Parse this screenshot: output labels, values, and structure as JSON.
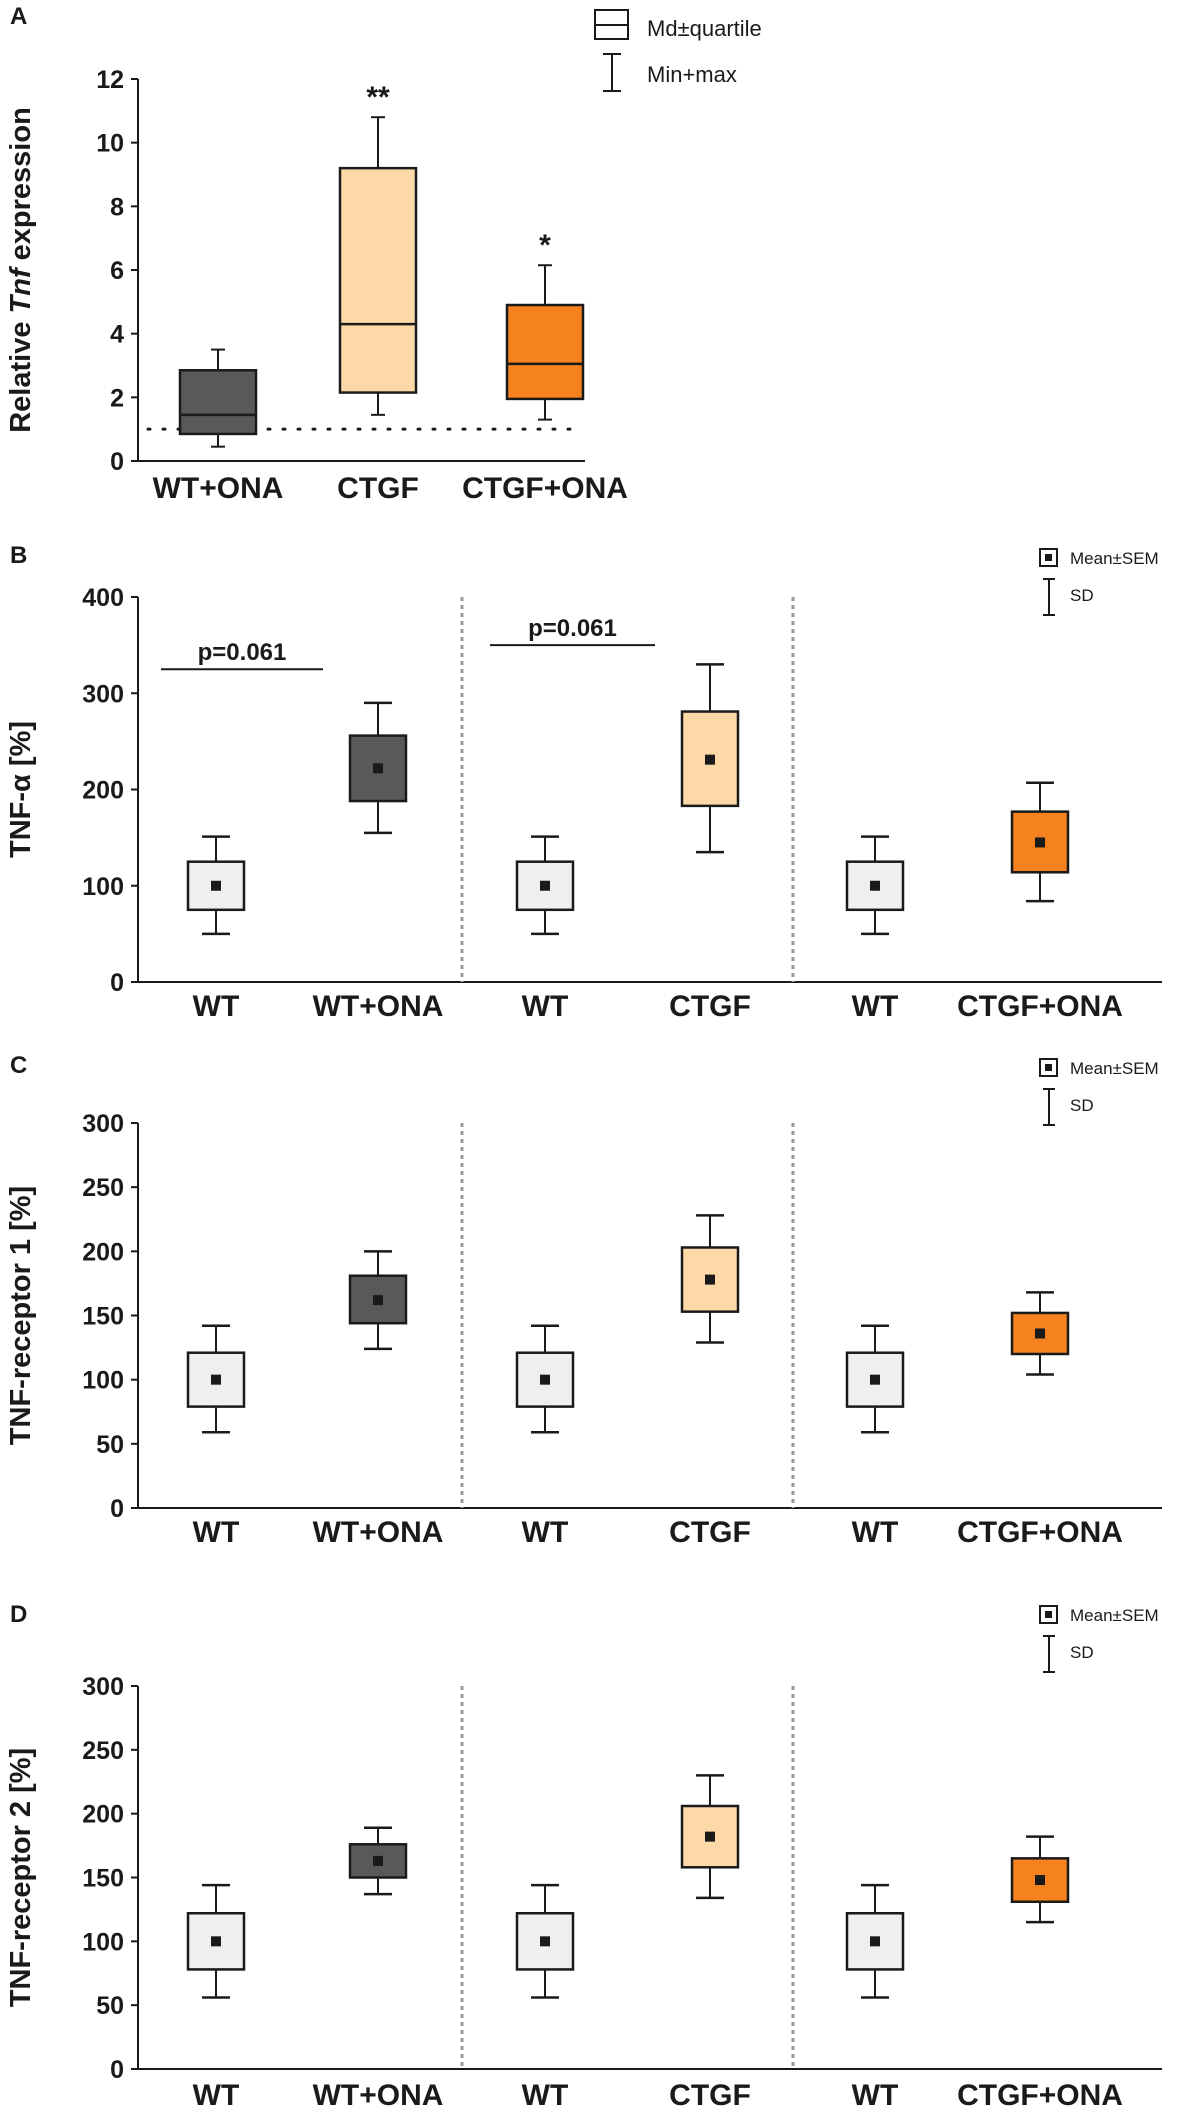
{
  "chart_data": [
    {
      "panel": "A",
      "type": "box",
      "ylabel_pre": "Relative ",
      "ylabel_em": "Tnf",
      "ylabel_post": " expression",
      "ylim": [
        0,
        12
      ],
      "yticks": [
        "0",
        "2",
        "4",
        "6",
        "8",
        "10",
        "12"
      ],
      "reference_line": 1,
      "legend": {
        "box": "Md±quartile",
        "whisker": "Min+max"
      },
      "boxes": [
        {
          "label": "WT+ONA",
          "min": 0.45,
          "q1": 0.85,
          "median": 1.45,
          "q3": 2.85,
          "max": 3.5,
          "color": "#595959",
          "sig": ""
        },
        {
          "label": "CTGF",
          "min": 1.45,
          "q1": 2.15,
          "median": 4.3,
          "q3": 9.2,
          "max": 10.8,
          "color": "#fdd9a8",
          "sig": "**"
        },
        {
          "label": "CTGF+ONA",
          "min": 1.3,
          "q1": 1.95,
          "median": 3.05,
          "q3": 4.9,
          "max": 6.15,
          "color": "#f5821f",
          "sig": "*"
        }
      ]
    },
    {
      "panel": "B",
      "type": "mean-sem-sd",
      "ylabel": "TNF-α [%]",
      "ylim": [
        0,
        400
      ],
      "yticks": [
        "0",
        "100",
        "200",
        "300",
        "400"
      ],
      "legend": {
        "mean": "Mean±SEM",
        "sd": "SD"
      },
      "groups": [
        {
          "label": "WT",
          "mean": 100,
          "sem_low": 75,
          "sem_high": 125,
          "sd_low": 50,
          "sd_high": 151,
          "color": "#efefef"
        },
        {
          "label": "WT+ONA",
          "mean": 222,
          "sem_low": 188,
          "sem_high": 256,
          "sd_low": 155,
          "sd_high": 290,
          "color": "#595959"
        },
        {
          "label": "WT",
          "mean": 100,
          "sem_low": 75,
          "sem_high": 125,
          "sd_low": 50,
          "sd_high": 151,
          "color": "#efefef"
        },
        {
          "label": "CTGF",
          "mean": 231,
          "sem_low": 183,
          "sem_high": 281,
          "sd_low": 135,
          "sd_high": 330,
          "color": "#fdd9a8"
        },
        {
          "label": "WT",
          "mean": 100,
          "sem_low": 75,
          "sem_high": 125,
          "sd_low": 50,
          "sd_high": 151,
          "color": "#efefef"
        },
        {
          "label": "CTGF+ONA",
          "mean": 145,
          "sem_low": 114,
          "sem_high": 177,
          "sd_low": 84,
          "sd_high": 207,
          "color": "#f5821f"
        }
      ],
      "brackets": [
        {
          "from": 0,
          "to": 1,
          "y": 325,
          "text": "p=0.061"
        },
        {
          "from": 2,
          "to": 3,
          "y": 350,
          "text": "p=0.061"
        }
      ]
    },
    {
      "panel": "C",
      "type": "mean-sem-sd",
      "ylabel": "TNF-receptor 1 [%]",
      "ylim": [
        0,
        300
      ],
      "yticks": [
        "0",
        "50",
        "100",
        "150",
        "200",
        "250",
        "300"
      ],
      "legend": {
        "mean": "Mean±SEM",
        "sd": "SD"
      },
      "groups": [
        {
          "label": "WT",
          "mean": 100,
          "sem_low": 79,
          "sem_high": 121,
          "sd_low": 59,
          "sd_high": 142,
          "color": "#efefef"
        },
        {
          "label": "WT+ONA",
          "mean": 162,
          "sem_low": 144,
          "sem_high": 181,
          "sd_low": 124,
          "sd_high": 200,
          "color": "#595959"
        },
        {
          "label": "WT",
          "mean": 100,
          "sem_low": 79,
          "sem_high": 121,
          "sd_low": 59,
          "sd_high": 142,
          "color": "#efefef"
        },
        {
          "label": "CTGF",
          "mean": 178,
          "sem_low": 153,
          "sem_high": 203,
          "sd_low": 129,
          "sd_high": 228,
          "color": "#fdd9a8"
        },
        {
          "label": "WT",
          "mean": 100,
          "sem_low": 79,
          "sem_high": 121,
          "sd_low": 59,
          "sd_high": 142,
          "color": "#efefef"
        },
        {
          "label": "CTGF+ONA",
          "mean": 136,
          "sem_low": 120,
          "sem_high": 152,
          "sd_low": 104,
          "sd_high": 168,
          "color": "#f5821f"
        }
      ],
      "brackets": []
    },
    {
      "panel": "D",
      "type": "mean-sem-sd",
      "ylabel": "TNF-receptor 2 [%]",
      "ylim": [
        0,
        300
      ],
      "yticks": [
        "0",
        "50",
        "100",
        "150",
        "200",
        "250",
        "300"
      ],
      "legend": {
        "mean": "Mean±SEM",
        "sd": "SD"
      },
      "groups": [
        {
          "label": "WT",
          "mean": 100,
          "sem_low": 78,
          "sem_high": 122,
          "sd_low": 56,
          "sd_high": 144,
          "color": "#efefef"
        },
        {
          "label": "WT+ONA",
          "mean": 163,
          "sem_low": 150,
          "sem_high": 176,
          "sd_low": 137,
          "sd_high": 189,
          "color": "#595959"
        },
        {
          "label": "WT",
          "mean": 100,
          "sem_low": 78,
          "sem_high": 122,
          "sd_low": 56,
          "sd_high": 144,
          "color": "#efefef"
        },
        {
          "label": "CTGF",
          "mean": 182,
          "sem_low": 158,
          "sem_high": 206,
          "sd_low": 134,
          "sd_high": 230,
          "color": "#fdd9a8"
        },
        {
          "label": "WT",
          "mean": 100,
          "sem_low": 78,
          "sem_high": 122,
          "sd_low": 56,
          "sd_high": 144,
          "color": "#efefef"
        },
        {
          "label": "CTGF+ONA",
          "mean": 148,
          "sem_low": 131,
          "sem_high": 165,
          "sd_low": 115,
          "sd_high": 182,
          "color": "#f5821f"
        }
      ],
      "brackets": []
    }
  ]
}
